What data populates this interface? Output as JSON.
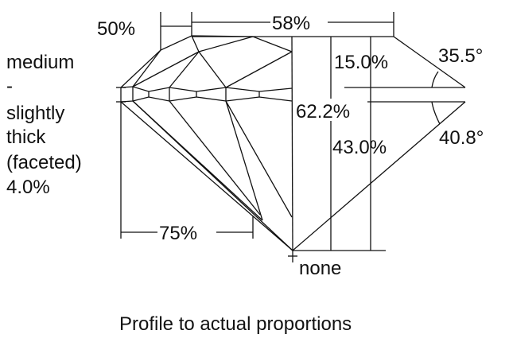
{
  "labels": {
    "crown_left": "50%",
    "table": "58%",
    "crown_height": "15.0%",
    "crown_angle": "35.5°",
    "total_depth": "62.2%",
    "pavilion_depth": "43.0%",
    "pavilion_angle": "40.8°",
    "lower_half": "75%",
    "culet": "none",
    "girdle_lines": [
      "medium",
      "-",
      "slightly",
      "thick",
      "(faceted)",
      "4.0%"
    ]
  },
  "caption": "Profile to actual proportions"
}
